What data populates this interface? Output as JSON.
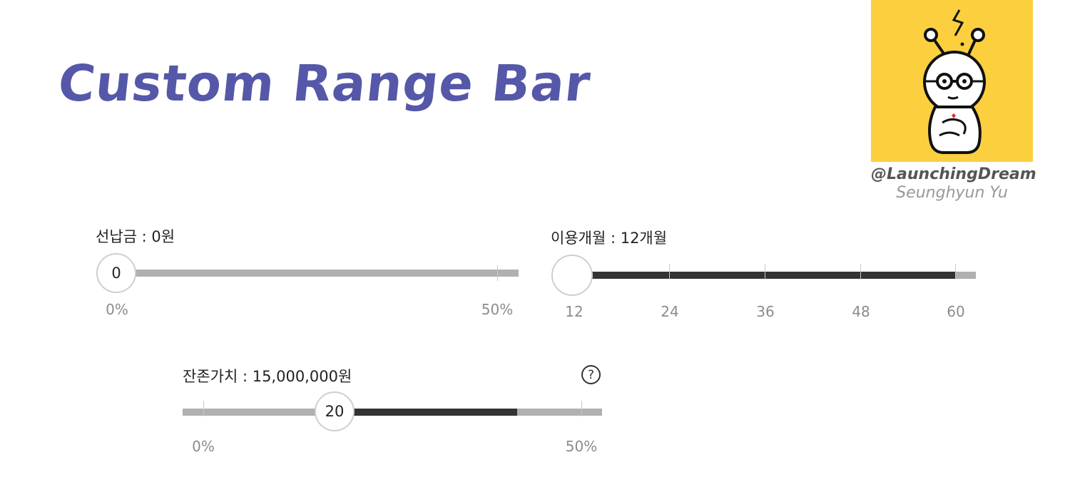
{
  "header": {
    "title": "Custom Range Bar"
  },
  "branding": {
    "handle": "@LaunchingDream",
    "author": "Seunghyun Yu",
    "avatar_icon": "character-illustration-icon",
    "avatar_bg": "#fccf3e"
  },
  "colors": {
    "title": "#5558a8",
    "track": "#b0b0b0",
    "fill": "#333333",
    "knob_border": "#cfcfcf",
    "tick_label": "#8c8c8c"
  },
  "down_payment": {
    "label": "선납금 : 0원",
    "knob_value": "0",
    "value_percent": 0,
    "ticks": [
      "0%",
      "50%"
    ]
  },
  "usage_months": {
    "label": "이용개월 : 12개월",
    "knob_value": "",
    "value": 12,
    "ticks": [
      "12",
      "24",
      "36",
      "48",
      "60"
    ]
  },
  "residual_value": {
    "label": "잔존가치 : 15,000,000원",
    "knob_value": "20",
    "value_percent": 20,
    "range_percent": [
      20,
      40
    ],
    "ticks": [
      "0%",
      "50%"
    ],
    "help_symbol": "?",
    "help_icon": "question-circle-icon"
  }
}
